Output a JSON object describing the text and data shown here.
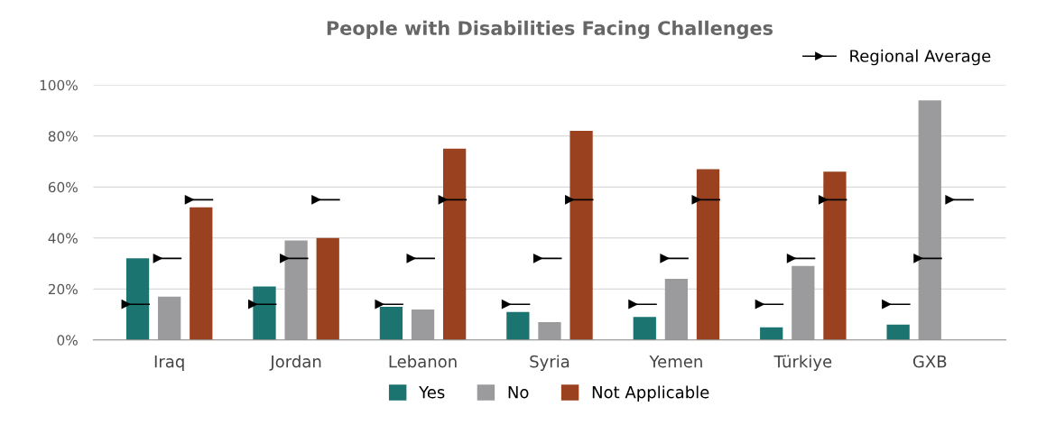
{
  "chart_data": {
    "type": "bar",
    "title": "People with Disabilities Facing Challenges",
    "categories": [
      "Iraq",
      "Jordan",
      "Lebanon",
      "Syria",
      "Yemen",
      "Türkiye",
      "GXB"
    ],
    "series": [
      {
        "name": "Yes",
        "color": "#1b7470",
        "values": [
          32,
          21,
          13,
          11,
          9,
          5,
          6
        ]
      },
      {
        "name": "No",
        "color": "#9b9b9d",
        "values": [
          17,
          39,
          12,
          7,
          24,
          29,
          94
        ]
      },
      {
        "name": "Not Applicable",
        "color": "#9a4220",
        "values": [
          52,
          40,
          75,
          82,
          67,
          66,
          null
        ]
      },
      {
        "type": "scatter",
        "name": "Regional Average",
        "color": "#000000",
        "marker": "triangle",
        "values": [
          14,
          14,
          14,
          14,
          14,
          14,
          14
        ]
      },
      {
        "type": "scatter",
        "color": "#000000",
        "marker": "triangle",
        "values": [
          32,
          32,
          32,
          32,
          32,
          32,
          32
        ]
      },
      {
        "type": "scatter",
        "color": "#000000",
        "marker": "triangle",
        "values": [
          55,
          55,
          55,
          55,
          55,
          55,
          55
        ]
      }
    ],
    "ylim": [
      0,
      100
    ],
    "yticks": [
      {
        "value": 0,
        "label": "0%"
      },
      {
        "value": 20,
        "label": "20%"
      },
      {
        "value": 40,
        "label": "40%"
      },
      {
        "value": 60,
        "label": "60%"
      },
      {
        "value": 80,
        "label": "80%"
      },
      {
        "value": 100,
        "label": "100%"
      }
    ],
    "grid": "y",
    "legend": "bottom"
  }
}
